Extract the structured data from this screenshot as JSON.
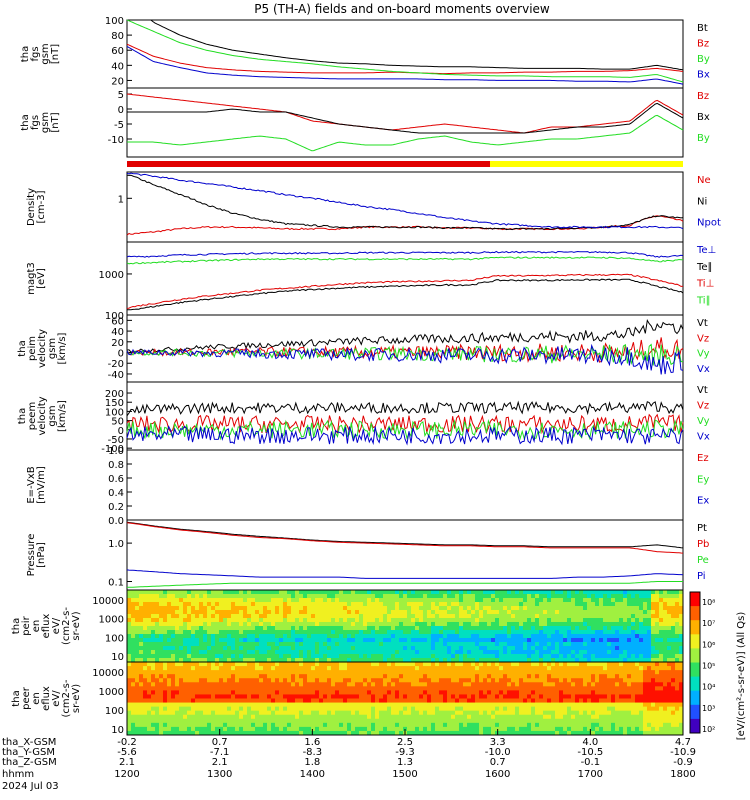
{
  "title": "P5 (TH-A) fields and on-board moments overview",
  "colors": {
    "black": "#000000",
    "red": "#e00000",
    "green": "#22dd22",
    "blue": "#0000cc",
    "yellow": "#ffff00"
  },
  "time_axis": {
    "hhmm": [
      "1200",
      "1300",
      "1400",
      "1500",
      "1600",
      "1700",
      "1800"
    ],
    "x_gsm": [
      "-0.2",
      "0.7",
      "1.6",
      "2.5",
      "3.3",
      "4.0",
      "4.7"
    ],
    "y_gsm": [
      "-5.6",
      "-7.1",
      "-8.3",
      "-9.3",
      "-10.0",
      "-10.5",
      "-10.9"
    ],
    "z_gsm": [
      "2.1",
      "2.1",
      "1.8",
      "1.3",
      "0.7",
      "-0.1",
      "-0.9"
    ],
    "row_labels": [
      "tha_X-GSM",
      "tha_Y-GSM",
      "tha_Z-GSM",
      "hhmm",
      "2024 Jul 03"
    ]
  },
  "chart_data": [
    {
      "id": "bmag",
      "type": "line",
      "ylabel": [
        "tha",
        "fgs",
        "gsm",
        "[nT]"
      ],
      "yticks": [
        "100",
        "80",
        "60",
        "40",
        "20"
      ],
      "ylim": [
        10,
        100
      ],
      "series": [
        {
          "name": "Bt",
          "color": "black",
          "values": [
            140,
            97,
            80,
            68,
            60,
            55,
            50,
            46,
            43,
            42,
            40,
            39,
            38,
            38,
            37,
            36,
            36,
            36,
            35,
            35,
            40,
            34
          ]
        },
        {
          "name": "Bz",
          "color": "red",
          "values": [
            68,
            52,
            43,
            37,
            34,
            32,
            31,
            30,
            30,
            30,
            31,
            30,
            29,
            30,
            30,
            31,
            31,
            32,
            32,
            33,
            36,
            32
          ]
        },
        {
          "name": "By",
          "color": "green",
          "values": [
            100,
            85,
            70,
            60,
            53,
            48,
            45,
            42,
            38,
            35,
            32,
            30,
            28,
            27,
            26,
            26,
            25,
            25,
            25,
            24,
            28,
            18
          ]
        },
        {
          "name": "Bx",
          "color": "blue",
          "values": [
            65,
            45,
            37,
            30,
            27,
            25,
            24,
            23,
            22,
            22,
            22,
            22,
            21,
            21,
            20,
            20,
            20,
            19,
            19,
            18,
            22,
            15
          ]
        }
      ]
    },
    {
      "id": "bcomp",
      "type": "line",
      "ylabel": [
        "tha",
        "fgs",
        "gsm",
        "[nT]"
      ],
      "yticks": [
        "5",
        "0",
        "-5",
        "-10"
      ],
      "ylim": [
        -16,
        7
      ],
      "series": [
        {
          "name": "Bz",
          "color": "red",
          "values": [
            5,
            4,
            3,
            2,
            1,
            0,
            -1,
            -4,
            -5,
            -6,
            -7,
            -6,
            -5,
            -6,
            -7,
            -8,
            -6,
            -6,
            -5,
            -4,
            3,
            -2
          ]
        },
        {
          "name": "Bx",
          "color": "black",
          "values": [
            -1,
            -1,
            -1,
            -1,
            0,
            -1,
            -1,
            -3,
            -5,
            -6,
            -7,
            -8,
            -8,
            -8,
            -8,
            -8,
            -7,
            -6,
            -6,
            -5,
            2,
            -3
          ]
        },
        {
          "name": "By",
          "color": "green",
          "values": [
            -11,
            -11,
            -12,
            -11,
            -10,
            -9,
            -10,
            -14,
            -11,
            -12,
            -12,
            -10,
            -9,
            -11,
            -12,
            -11,
            -10,
            -10,
            -9,
            -8,
            -2,
            -7
          ]
        }
      ]
    },
    {
      "id": "density",
      "type": "line",
      "ylabel": [
        "Density",
        "[cm-3]"
      ],
      "yticks": [
        "1"
      ],
      "ylog": true,
      "ylim": [
        0.1,
        4
      ],
      "series": [
        {
          "name": "Ne",
          "color": "red",
          "values": [
            0.15,
            0.17,
            0.2,
            0.22,
            0.22,
            0.21,
            0.2,
            0.2,
            0.2,
            0.22,
            0.22,
            0.22,
            0.21,
            0.21,
            0.2,
            0.2,
            0.2,
            0.2,
            0.22,
            0.24,
            0.4,
            0.3
          ]
        },
        {
          "name": "Ni",
          "color": "black",
          "values": [
            3.5,
            2.0,
            1.2,
            0.7,
            0.45,
            0.33,
            0.26,
            0.24,
            0.22,
            0.22,
            0.22,
            0.22,
            0.21,
            0.21,
            0.2,
            0.2,
            0.2,
            0.21,
            0.22,
            0.25,
            0.4,
            0.35
          ]
        },
        {
          "name": "Npot",
          "color": "blue",
          "values": [
            3.8,
            3.2,
            2.6,
            2.2,
            1.8,
            1.5,
            1.2,
            1.0,
            0.8,
            0.65,
            0.55,
            0.45,
            0.36,
            0.3,
            0.26,
            0.24,
            0.22,
            0.22,
            0.22,
            0.22,
            0.22,
            0.21
          ]
        }
      ]
    },
    {
      "id": "temp",
      "type": "line",
      "ylabel": [
        "magt3",
        "[eV]"
      ],
      "yticks": [
        "1000",
        "100"
      ],
      "ylog": true,
      "ylim": [
        100,
        6000
      ],
      "series": [
        {
          "name": "Te⊥",
          "color": "blue",
          "values": [
            2600,
            2700,
            2900,
            3000,
            3100,
            3200,
            3200,
            3200,
            3200,
            3300,
            3300,
            3300,
            3300,
            3300,
            3400,
            3400,
            3400,
            3400,
            3400,
            3300,
            2600,
            2800
          ]
        },
        {
          "name": "Te∥",
          "color": "black",
          "values": [
            130,
            160,
            200,
            240,
            280,
            330,
            380,
            420,
            450,
            480,
            500,
            520,
            540,
            540,
            700,
            700,
            700,
            720,
            720,
            720,
            500,
            350
          ]
        },
        {
          "name": "Ti⊥",
          "color": "red",
          "values": [
            150,
            190,
            240,
            290,
            340,
            400,
            450,
            500,
            560,
            610,
            640,
            660,
            680,
            700,
            900,
            900,
            920,
            940,
            950,
            950,
            700,
            500
          ]
        },
        {
          "name": "Ti∥",
          "color": "green",
          "values": [
            1800,
            1900,
            2000,
            2100,
            2200,
            2300,
            2300,
            2300,
            2300,
            2300,
            2300,
            2300,
            2300,
            2300,
            2500,
            2500,
            2500,
            2500,
            2500,
            2400,
            2000,
            2200
          ]
        }
      ]
    },
    {
      "id": "vpeim",
      "type": "line",
      "ylabel": [
        "tha",
        "peim",
        "velocity",
        "gsm",
        "[km/s]"
      ],
      "yticks": [
        "60",
        "40",
        "20",
        "0",
        "-20",
        "-40"
      ],
      "ylim": [
        -55,
        70
      ],
      "series": [
        {
          "name": "Vt",
          "color": "black",
          "values": [
            3,
            5,
            7,
            10,
            12,
            14,
            16,
            18,
            20,
            22,
            23,
            25,
            26,
            27,
            28,
            30,
            30,
            30,
            32,
            34,
            55,
            45
          ]
        },
        {
          "name": "Vz",
          "color": "red",
          "values": [
            0,
            0,
            0,
            1,
            1,
            1,
            1,
            1,
            0,
            0,
            0,
            0,
            0,
            0,
            0,
            0,
            0,
            0,
            0,
            0,
            10,
            5
          ]
        },
        {
          "name": "Vy",
          "color": "green",
          "values": [
            0,
            0,
            0,
            -1,
            -1,
            -1,
            -2,
            -2,
            -2,
            -2,
            -2,
            -2,
            -2,
            -3,
            -3,
            -3,
            -3,
            -3,
            -3,
            -3,
            -5,
            -3
          ]
        },
        {
          "name": "Vx",
          "color": "blue",
          "values": [
            0,
            0,
            0,
            -1,
            -1,
            -2,
            -3,
            -3,
            -3,
            -4,
            -4,
            -4,
            -5,
            -5,
            -5,
            -5,
            -5,
            -5,
            -5,
            -5,
            -25,
            -15
          ]
        }
      ]
    },
    {
      "id": "vpeem",
      "type": "line",
      "ylabel": [
        "tha",
        "peem",
        "velocity",
        "gsm",
        "[km/s]"
      ],
      "yticks": [
        "200",
        "150",
        "100",
        "50",
        "0",
        "-50",
        "-100"
      ],
      "ylim": [
        -110,
        260
      ],
      "series": [
        {
          "name": "Vt",
          "color": "black",
          "values": [
            100,
            110,
            115,
            120,
            120,
            120,
            120,
            120,
            120,
            120,
            120,
            120,
            120,
            120,
            120,
            120,
            120,
            120,
            120,
            120,
            130,
            110
          ]
        },
        {
          "name": "Vz",
          "color": "red",
          "values": [
            30,
            30,
            30,
            30,
            30,
            30,
            30,
            30,
            30,
            30,
            30,
            30,
            30,
            30,
            30,
            30,
            30,
            30,
            30,
            30,
            40,
            30
          ]
        },
        {
          "name": "Vy",
          "color": "green",
          "values": [
            0,
            0,
            0,
            0,
            0,
            0,
            0,
            0,
            0,
            0,
            0,
            0,
            0,
            0,
            0,
            0,
            0,
            0,
            0,
            0,
            5,
            0
          ]
        },
        {
          "name": "Vx",
          "color": "blue",
          "values": [
            -30,
            -30,
            -30,
            -30,
            -30,
            -30,
            -30,
            -30,
            -30,
            -30,
            -30,
            -30,
            -30,
            -30,
            -30,
            -30,
            -30,
            -30,
            -30,
            -30,
            -40,
            -30
          ]
        }
      ]
    },
    {
      "id": "efield",
      "type": "line",
      "ylabel": [
        "E=-VxB",
        "[mV/m]"
      ],
      "yticks": [
        "1.0",
        "0.8",
        "0.6",
        "0.4",
        "0.2",
        "0.0"
      ],
      "ylim": [
        0,
        1
      ],
      "series": [
        {
          "name": "Ez",
          "color": "red",
          "values": []
        },
        {
          "name": "Ey",
          "color": "green",
          "values": []
        },
        {
          "name": "Ex",
          "color": "blue",
          "values": []
        }
      ]
    },
    {
      "id": "pressure",
      "type": "line",
      "ylabel": [
        "Pressure",
        "[nPa]"
      ],
      "yticks": [
        "1.0",
        "0.1"
      ],
      "ylog": true,
      "ylim": [
        0.06,
        4
      ],
      "series": [
        {
          "name": "Pt",
          "color": "black",
          "values": [
            3.5,
            2.8,
            2.3,
            2.0,
            1.7,
            1.5,
            1.35,
            1.2,
            1.1,
            1.05,
            1.0,
            0.95,
            0.9,
            0.9,
            0.85,
            0.85,
            0.8,
            0.8,
            0.8,
            0.8,
            0.9,
            0.75
          ]
        },
        {
          "name": "Pb",
          "color": "red",
          "values": [
            3.4,
            2.7,
            2.2,
            1.9,
            1.6,
            1.4,
            1.3,
            1.15,
            1.05,
            1.0,
            0.95,
            0.9,
            0.85,
            0.85,
            0.8,
            0.8,
            0.75,
            0.75,
            0.75,
            0.75,
            0.6,
            0.55
          ]
        },
        {
          "name": "Pe",
          "color": "green",
          "values": [
            0.07,
            0.075,
            0.08,
            0.085,
            0.09,
            0.09,
            0.09,
            0.09,
            0.09,
            0.09,
            0.09,
            0.09,
            0.09,
            0.09,
            0.09,
            0.09,
            0.09,
            0.09,
            0.09,
            0.09,
            0.1,
            0.1
          ]
        },
        {
          "name": "Pi",
          "color": "blue",
          "values": [
            0.2,
            0.18,
            0.16,
            0.15,
            0.14,
            0.13,
            0.13,
            0.13,
            0.13,
            0.12,
            0.12,
            0.12,
            0.12,
            0.12,
            0.12,
            0.12,
            0.12,
            0.13,
            0.13,
            0.14,
            0.16,
            0.15
          ]
        }
      ]
    },
    {
      "id": "peir",
      "type": "heatmap",
      "ylabel": [
        "tha",
        "peir",
        "en",
        "eflux",
        "eV/",
        "(cm2-s-",
        "sr-eV)"
      ],
      "yticks": [
        "10000",
        "1000",
        "100",
        "10"
      ],
      "ylog": true
    },
    {
      "id": "peer",
      "type": "heatmap",
      "ylabel": [
        "tha",
        "peer",
        "en",
        "eflux",
        "eV/",
        "(cm2-s-",
        "sr-eV)"
      ],
      "yticks": [
        "10000",
        "1000",
        "100",
        "10"
      ],
      "ylog": true
    }
  ],
  "colorbar": {
    "ticks": [
      "10⁸",
      "10⁷",
      "10⁶",
      "10⁵",
      "10⁴",
      "10³",
      "10²"
    ],
    "label": "[eV/(cm²-s-sr-eV)] (All Qs)"
  }
}
